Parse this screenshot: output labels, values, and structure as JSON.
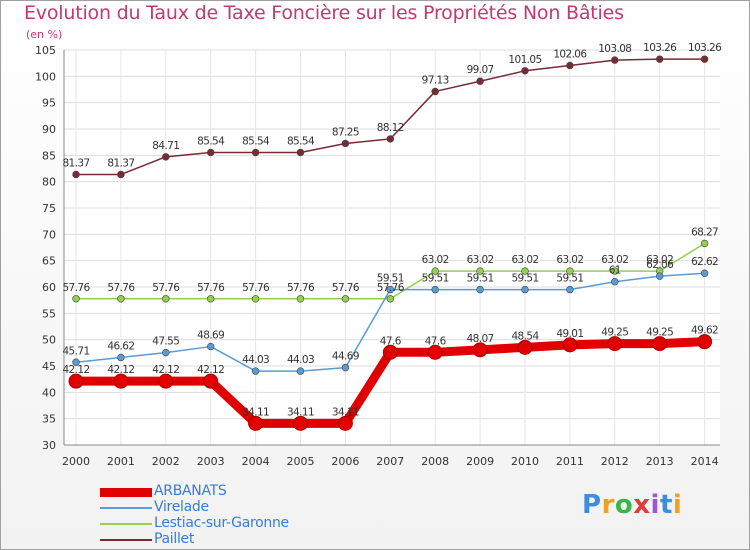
{
  "title": "Evolution du Taux de Taxe Foncière sur les Propriétés Non Bâties",
  "unit": "(en %)",
  "logo": {
    "text": "Proxiti",
    "letters": [
      "P",
      "r",
      "o",
      "x",
      "i",
      "t",
      "i"
    ],
    "colors": [
      "#3a8de0",
      "#f0a020",
      "#3ab54a",
      "#e23b3b",
      "#9b59d0",
      "#3a8de0",
      "#f0a020"
    ]
  },
  "chart_data": {
    "type": "line",
    "title": "Evolution du Taux de Taxe Foncière sur les Propriétés Non Bâties",
    "ylabel": "(en %)",
    "xlabel": "",
    "ylim": [
      30,
      105
    ],
    "yticks": [
      30,
      35,
      40,
      45,
      50,
      55,
      60,
      65,
      70,
      75,
      80,
      85,
      90,
      95,
      100,
      105
    ],
    "x": [
      "2000",
      "2001",
      "2002",
      "2003",
      "2004",
      "2005",
      "2006",
      "2007",
      "2008",
      "2009",
      "2010",
      "2011",
      "2012",
      "2013",
      "2014"
    ],
    "series": [
      {
        "name": "ARBANATS",
        "color": "#e00000",
        "values": [
          42.12,
          42.12,
          42.12,
          42.12,
          34.11,
          34.11,
          34.11,
          47.6,
          47.6,
          48.07,
          48.54,
          49.01,
          49.25,
          49.25,
          49.62
        ],
        "labels": [
          "42.12",
          "42.12",
          "42.12",
          "42.12",
          "34.11",
          "34.11",
          "34.11",
          "47.6",
          "47.6",
          "48.07",
          "48.54",
          "49.01",
          "49.25",
          "49.25",
          "49.62"
        ]
      },
      {
        "name": "Virelade",
        "color": "#5b9bd5",
        "values": [
          45.71,
          46.62,
          47.55,
          48.69,
          44.03,
          44.03,
          44.69,
          59.51,
          59.51,
          59.51,
          59.51,
          59.51,
          61,
          62.06,
          62.62
        ],
        "labels": [
          "45.71",
          "46.62",
          "47.55",
          "48.69",
          "44.03",
          "44.03",
          "44.69",
          "59.51",
          "59.51",
          "59.51",
          "59.51",
          "59.51",
          "61",
          "62.06",
          "62.62"
        ]
      },
      {
        "name": "Lestiac-sur-Garonne",
        "color": "#92d050",
        "values": [
          57.76,
          57.76,
          57.76,
          57.76,
          57.76,
          57.76,
          57.76,
          57.76,
          63.02,
          63.02,
          63.02,
          63.02,
          63.02,
          63.02,
          68.27
        ],
        "labels": [
          "57.76",
          "57.76",
          "57.76",
          "57.76",
          "57.76",
          "57.76",
          "57.76",
          "57.76",
          "63.02",
          "63.02",
          "63.02",
          "63.02",
          "63.02",
          "63.02",
          "68.27"
        ]
      },
      {
        "name": "Paillet",
        "color": "#7a2a33",
        "values": [
          81.37,
          81.37,
          84.71,
          85.54,
          85.54,
          85.54,
          87.25,
          88.12,
          97.13,
          99.07,
          101.05,
          102.06,
          103.08,
          103.26,
          103.26
        ],
        "labels": [
          "81.37",
          "81.37",
          "84.71",
          "85.54",
          "85.54",
          "85.54",
          "87.25",
          "88.12",
          "97.13",
          "99.07",
          "101.05",
          "102.06",
          "103.08",
          "103.26",
          "103.26"
        ]
      }
    ],
    "legend_position": "bottom-left",
    "grid": true
  }
}
